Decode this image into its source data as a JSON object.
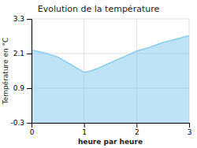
{
  "chart_data": {
    "type": "area",
    "title": "Evolution de la température",
    "x_label": "heure par heure",
    "y_label": "Température en °C",
    "x": [
      0,
      0.25,
      0.5,
      0.75,
      1.0,
      1.1,
      1.25,
      1.5,
      1.75,
      2.0,
      2.25,
      2.5,
      2.75,
      3.0
    ],
    "values": [
      2.22,
      2.12,
      1.98,
      1.72,
      1.45,
      1.48,
      1.58,
      1.78,
      1.98,
      2.18,
      2.32,
      2.48,
      2.6,
      2.72
    ],
    "color": "#88ccee",
    "xlim": [
      0,
      3
    ],
    "xticks": [
      0,
      1,
      2,
      3
    ],
    "ylim": [
      -0.3,
      3.3
    ],
    "yticks": [
      -0.3,
      0.9,
      2.1,
      3.3
    ],
    "grid": true
  }
}
